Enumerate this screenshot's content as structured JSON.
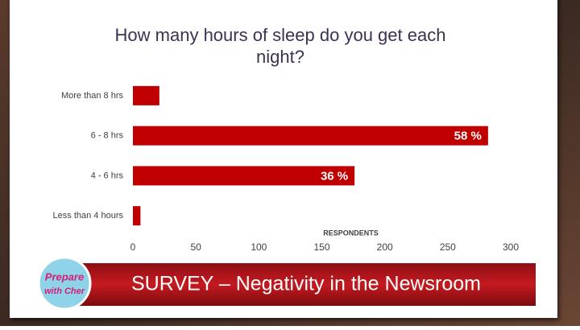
{
  "chart_data": {
    "type": "hbar",
    "title": "How many hours of sleep do you get each night?",
    "categories": [
      "More than 8 hrs",
      "6 - 8 hrs",
      "4 - 6 hrs",
      "Less than 4 hours"
    ],
    "values": [
      21,
      282,
      176,
      6
    ],
    "percent_labels": [
      null,
      "58 %",
      "36 %",
      null
    ],
    "color": "#c00000",
    "xlabel": "RESPONDENTS",
    "xlim": [
      0,
      300
    ],
    "xticks": [
      0,
      50,
      100,
      150,
      200,
      250,
      300
    ],
    "grid": false
  },
  "banner": {
    "text": "SURVEY – Negativity in the Newsroom"
  },
  "logo": {
    "line1": "Prepare",
    "line2": "with Cher"
  }
}
